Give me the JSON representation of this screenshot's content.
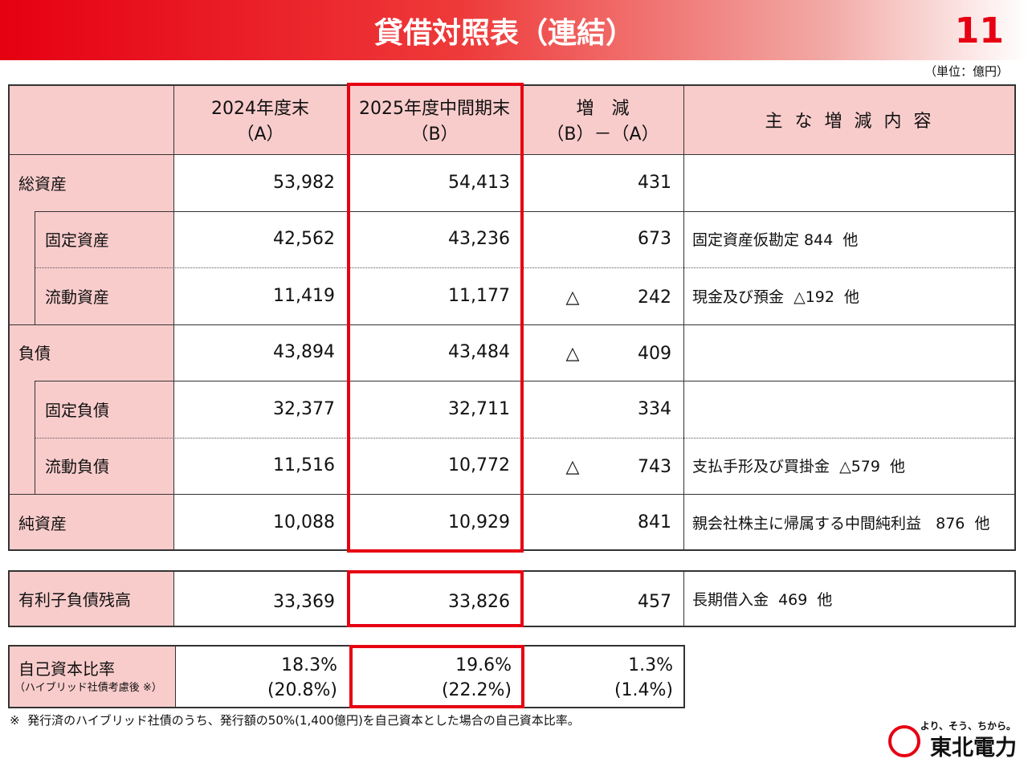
{
  "header": {
    "title": "貸借対照表（連結）",
    "page": "11",
    "unit": "（単位：億円）"
  },
  "table": {
    "header": [
      [
        "2024年度末",
        "（A）"
      ],
      [
        "2025年度中間期末",
        "（B）"
      ],
      [
        "増　減",
        "（B）－（A）"
      ],
      [
        "主 な 増 減 内 容"
      ]
    ],
    "groups": [
      {
        "label": "総資産",
        "a": "53,982",
        "b": "54,413",
        "diff": "431",
        "children": [
          {
            "label": "固定資産",
            "a": "42,562",
            "b": "43,236",
            "diff": "673",
            "note": "固定資産仮勘定 844  他"
          },
          {
            "label": "流動資産",
            "a": "11,419",
            "b": "11,177",
            "diff_sign": "△",
            "diff": "242",
            "note": "現金及び預金  △192  他"
          }
        ]
      },
      {
        "label": "負債",
        "a": "43,894",
        "b": "43,484",
        "diff_sign": "△",
        "diff": "409",
        "children": [
          {
            "label": "固定負債",
            "a": "32,377",
            "b": "32,711",
            "diff": "334"
          },
          {
            "label": "流動負債",
            "a": "11,516",
            "b": "10,772",
            "diff_sign": "△",
            "diff": "743",
            "note": "支払手形及び買掛金  △579  他"
          }
        ]
      },
      {
        "label": "純資産",
        "a": "10,088",
        "b": "10,929",
        "diff": "841",
        "note": "親会社株主に帰属する中間純利益   876  他"
      }
    ]
  },
  "debt": {
    "label": "有利子負債残高",
    "a": "33,369",
    "b": "33,826",
    "diff": "457",
    "note": "長期借入金  469  他"
  },
  "equity": {
    "label": "自己資本比率",
    "sublabel": "（ハイブリッド社債考慮後 ※）",
    "a": [
      "18.3%",
      "(20.8%)"
    ],
    "b": [
      "19.6%",
      "(22.2%)"
    ],
    "diff": [
      "1.3%",
      "(1.4%)"
    ]
  },
  "footnote": "※  発行済のハイブリッド社債のうち、発行額の50%(1,400億円)を自己資本とした場合の自己資本比率。",
  "logo": {
    "tagline": "より、そう、ちから。",
    "name": "東北電力"
  }
}
